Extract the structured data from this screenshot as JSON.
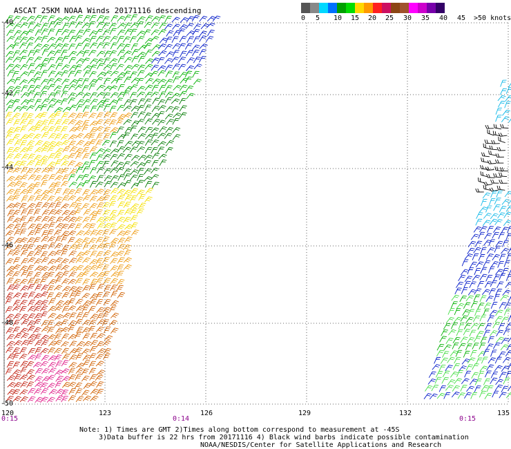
{
  "title": "ASCAT 25KM NOAA Winds 20171116 descending",
  "legend": {
    "ticks": [
      "0",
      "5",
      "10",
      "15",
      "20",
      "25",
      "30",
      "35",
      "40",
      "45",
      ">50 knots"
    ],
    "colors": [
      "#555555",
      "#888888",
      "#00d8ff",
      "#0070ff",
      "#00a000",
      "#00dd00",
      "#ffd800",
      "#ff9900",
      "#ff2020",
      "#cc1060",
      "#8b4513",
      "#a0522d",
      "#ff00ff",
      "#cc00cc",
      "#7700aa",
      "#330066"
    ]
  },
  "axes": {
    "lat_labels": [
      "-40",
      "-42",
      "-44",
      "-46",
      "-48",
      "-50"
    ],
    "lon_labels": [
      "120",
      "123",
      "126",
      "129",
      "132",
      "135"
    ]
  },
  "pass_times": [
    "0:15",
    "0:14",
    "0:15"
  ],
  "notes": {
    "line1": "Note: 1) Times are GMT 2)Times along bottom correspond to measurement at -45S",
    "line2": "3)Data buffer is 22 hrs from 20171116 4) Black wind barbs indicate possible contamination",
    "line3": "NOAA/NESDIS/Center for Satellite Applications and Research"
  },
  "wind_colors": {
    "blue": "#0018c8",
    "green": "#00b000",
    "darkgreen": "#007a00",
    "lightgreen": "#44dd44",
    "yellow": "#f5e000",
    "orange": "#ee9a10",
    "darkorange": "#d06000",
    "red": "#c02010",
    "magenta": "#e0208a",
    "cyan": "#10b8e8",
    "black": "#000000"
  }
}
